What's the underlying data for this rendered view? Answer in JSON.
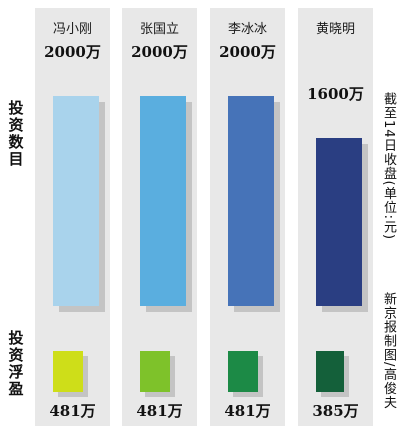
{
  "chart_data": {
    "type": "bar",
    "categories": [
      "冯小刚",
      "张国立",
      "李冰冰",
      "黄晓明"
    ],
    "series": [
      {
        "values": [
          2000,
          2000,
          2000,
          1600
        ],
        "value_labels": [
          "2000万",
          "2000万",
          "2000万",
          "1600万"
        ],
        "colors": [
          "#a9d3ec",
          "#5aaedf",
          "#4673b8",
          "#2a3e82"
        ]
      },
      {
        "values": [
          481,
          481,
          481,
          385
        ],
        "value_labels": [
          "481万",
          "481万",
          "481万",
          "385万"
        ],
        "colors": [
          "#cede19",
          "#7ec22a",
          "#1c8a46",
          "#14603a"
        ]
      }
    ],
    "row_labels": [
      "投资数目",
      "投资浮盈"
    ],
    "notes": [
      "截至14日收盘(单位:元)",
      "新京报制图/高俊夫"
    ],
    "background": "#e8e8e8",
    "shadow_color": "#c4c4c4"
  }
}
